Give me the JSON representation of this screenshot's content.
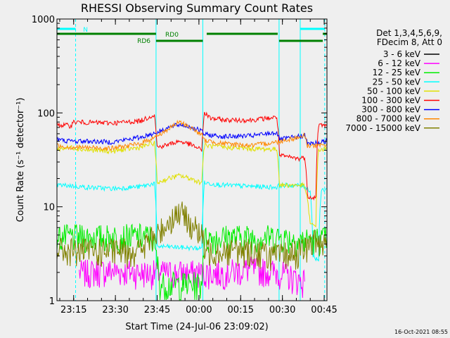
{
  "chart_data": {
    "type": "line",
    "title": "RHESSI Observing Summary Count Rates",
    "xlabel": "Start Time (24-Jul-06 23:09:02)",
    "ylabel": "Count Rate (s⁻¹ detector⁻¹)",
    "yscale": "log",
    "ylim": [
      1,
      1000
    ],
    "xlim_minutes": [
      0,
      97
    ],
    "x_ticks": [
      {
        "label": "23:15",
        "min": 6
      },
      {
        "label": "23:30",
        "min": 21
      },
      {
        "label": "23:45",
        "min": 36
      },
      {
        "label": "00:00",
        "min": 51
      },
      {
        "label": "00:15",
        "min": 66
      },
      {
        "label": "00:30",
        "min": 81
      },
      {
        "label": "00:45",
        "min": 96
      }
    ],
    "y_ticks": [
      {
        "label": "1",
        "value": 1
      },
      {
        "label": "10",
        "value": 10
      },
      {
        "label": "100",
        "value": 100
      },
      {
        "label": "1000",
        "value": 1000
      }
    ],
    "legend_header": [
      "Det 1,3,4,5,6,9,",
      "FDecim 8, Att 0"
    ],
    "legend_position": "right",
    "series": [
      {
        "name": "3 - 6 keV",
        "color": "#000000",
        "points": []
      },
      {
        "name": "6 - 12 keV",
        "color": "#ff00ff",
        "points": [
          [
            8,
            2
          ],
          [
            20,
            2.1
          ],
          [
            30,
            2
          ],
          [
            36,
            2
          ],
          [
            44,
            2
          ],
          [
            52,
            2
          ],
          [
            60,
            2
          ],
          [
            70,
            2.2
          ],
          [
            80,
            2
          ],
          [
            86,
            1.7
          ],
          [
            89,
            1.6
          ]
        ]
      },
      {
        "name": "12 - 25 keV",
        "color": "#00ee00",
        "points": [
          [
            0,
            4.8
          ],
          [
            10,
            4.8
          ],
          [
            20,
            4.8
          ],
          [
            30,
            4.9
          ],
          [
            34,
            4.8
          ],
          [
            37,
            1.5
          ],
          [
            44,
            1.5
          ],
          [
            52,
            1.5
          ],
          [
            53,
            4.6
          ],
          [
            60,
            4.8
          ],
          [
            70,
            4.8
          ],
          [
            80,
            4.8
          ],
          [
            88,
            4.4
          ],
          [
            97,
            4.6
          ]
        ]
      },
      {
        "name": "25 - 50 keV",
        "color": "#00ffff",
        "points": [
          [
            0,
            17
          ],
          [
            5,
            16.8
          ],
          [
            10,
            16.2
          ],
          [
            20,
            15.6
          ],
          [
            30,
            16.4
          ],
          [
            35,
            17.8
          ],
          [
            36,
            3.8
          ],
          [
            52,
            3.6
          ],
          [
            53,
            18
          ],
          [
            60,
            17
          ],
          [
            70,
            16.5
          ],
          [
            79,
            16.2
          ],
          [
            80,
            17
          ],
          [
            88,
            16.8
          ],
          [
            89,
            16.5
          ],
          [
            91,
            14.8
          ],
          [
            92,
            3
          ],
          [
            94,
            2.7
          ],
          [
            95,
            15
          ],
          [
            97,
            15.5
          ]
        ]
      },
      {
        "name": "50 - 100 keV",
        "color": "#e0e000",
        "points": [
          [
            0,
            41
          ],
          [
            5,
            43
          ],
          [
            10,
            40.5
          ],
          [
            20,
            39
          ],
          [
            30,
            43
          ],
          [
            35,
            48
          ],
          [
            36,
            18
          ],
          [
            40,
            20
          ],
          [
            44,
            21.5
          ],
          [
            48,
            20
          ],
          [
            52,
            18
          ],
          [
            53,
            45
          ],
          [
            60,
            43
          ],
          [
            70,
            41.5
          ],
          [
            79,
            41
          ],
          [
            80,
            17
          ],
          [
            88,
            17
          ],
          [
            89,
            16.5
          ],
          [
            91,
            6.5
          ],
          [
            93,
            6.2
          ],
          [
            94,
            40
          ],
          [
            97,
            42
          ]
        ]
      },
      {
        "name": "100 - 300 keV",
        "color": "#ff0000",
        "points": [
          [
            0,
            75
          ],
          [
            5,
            73
          ],
          [
            6,
            80
          ],
          [
            12,
            79
          ],
          [
            20,
            78
          ],
          [
            30,
            82
          ],
          [
            35,
            96
          ],
          [
            36,
            43
          ],
          [
            40,
            46
          ],
          [
            44,
            50
          ],
          [
            48,
            46
          ],
          [
            52,
            40
          ],
          [
            53,
            100
          ],
          [
            55,
            88
          ],
          [
            60,
            84
          ],
          [
            70,
            84
          ],
          [
            79,
            90
          ],
          [
            80,
            35
          ],
          [
            87,
            32.5
          ],
          [
            89,
            34
          ],
          [
            90,
            13
          ],
          [
            93,
            12.5
          ],
          [
            94,
            74
          ],
          [
            97,
            75
          ]
        ]
      },
      {
        "name": "300 - 800 keV",
        "color": "#0000ff",
        "points": [
          [
            0,
            52
          ],
          [
            5,
            50
          ],
          [
            10,
            50
          ],
          [
            20,
            49
          ],
          [
            30,
            55
          ],
          [
            36,
            62
          ],
          [
            40,
            70
          ],
          [
            44,
            75
          ],
          [
            48,
            71
          ],
          [
            52,
            64
          ],
          [
            53,
            59
          ],
          [
            60,
            56
          ],
          [
            70,
            57
          ],
          [
            79,
            62
          ],
          [
            80,
            52
          ],
          [
            87,
            56
          ],
          [
            89,
            58
          ],
          [
            90,
            47
          ],
          [
            94,
            48
          ],
          [
            97,
            51
          ]
        ]
      },
      {
        "name": "800 - 7000 keV",
        "color": "#ff8800",
        "points": [
          [
            0,
            45
          ],
          [
            5,
            43
          ],
          [
            10,
            43
          ],
          [
            20,
            42
          ],
          [
            30,
            47
          ],
          [
            36,
            57
          ],
          [
            40,
            67
          ],
          [
            44,
            80
          ],
          [
            48,
            70
          ],
          [
            52,
            58
          ],
          [
            53,
            51
          ],
          [
            60,
            47
          ],
          [
            70,
            45
          ],
          [
            79,
            49
          ],
          [
            80,
            50
          ],
          [
            87,
            55
          ],
          [
            89,
            58
          ],
          [
            90,
            45
          ],
          [
            94,
            44.5
          ],
          [
            97,
            46
          ]
        ]
      },
      {
        "name": "7000 - 15000 keV",
        "color": "#808000",
        "points": [
          [
            0,
            3.5
          ],
          [
            10,
            3.4
          ],
          [
            20,
            3.4
          ],
          [
            30,
            3.5
          ],
          [
            34,
            4.6
          ],
          [
            36,
            5
          ],
          [
            40,
            7
          ],
          [
            44,
            9
          ],
          [
            48,
            6.8
          ],
          [
            52,
            4.9
          ],
          [
            53,
            3.5
          ],
          [
            60,
            3.5
          ],
          [
            70,
            3.4
          ],
          [
            80,
            3
          ],
          [
            88,
            3.4
          ],
          [
            92,
            4.2
          ],
          [
            97,
            4.4
          ]
        ]
      }
    ],
    "annotations": [
      {
        "label": "N",
        "color": "#00ffff"
      },
      {
        "label": "RD0",
        "color": "#008000"
      },
      {
        "label": "RD6",
        "color": "#008000"
      }
    ],
    "footer_timestamp": "16-Oct-2021 08:55"
  }
}
